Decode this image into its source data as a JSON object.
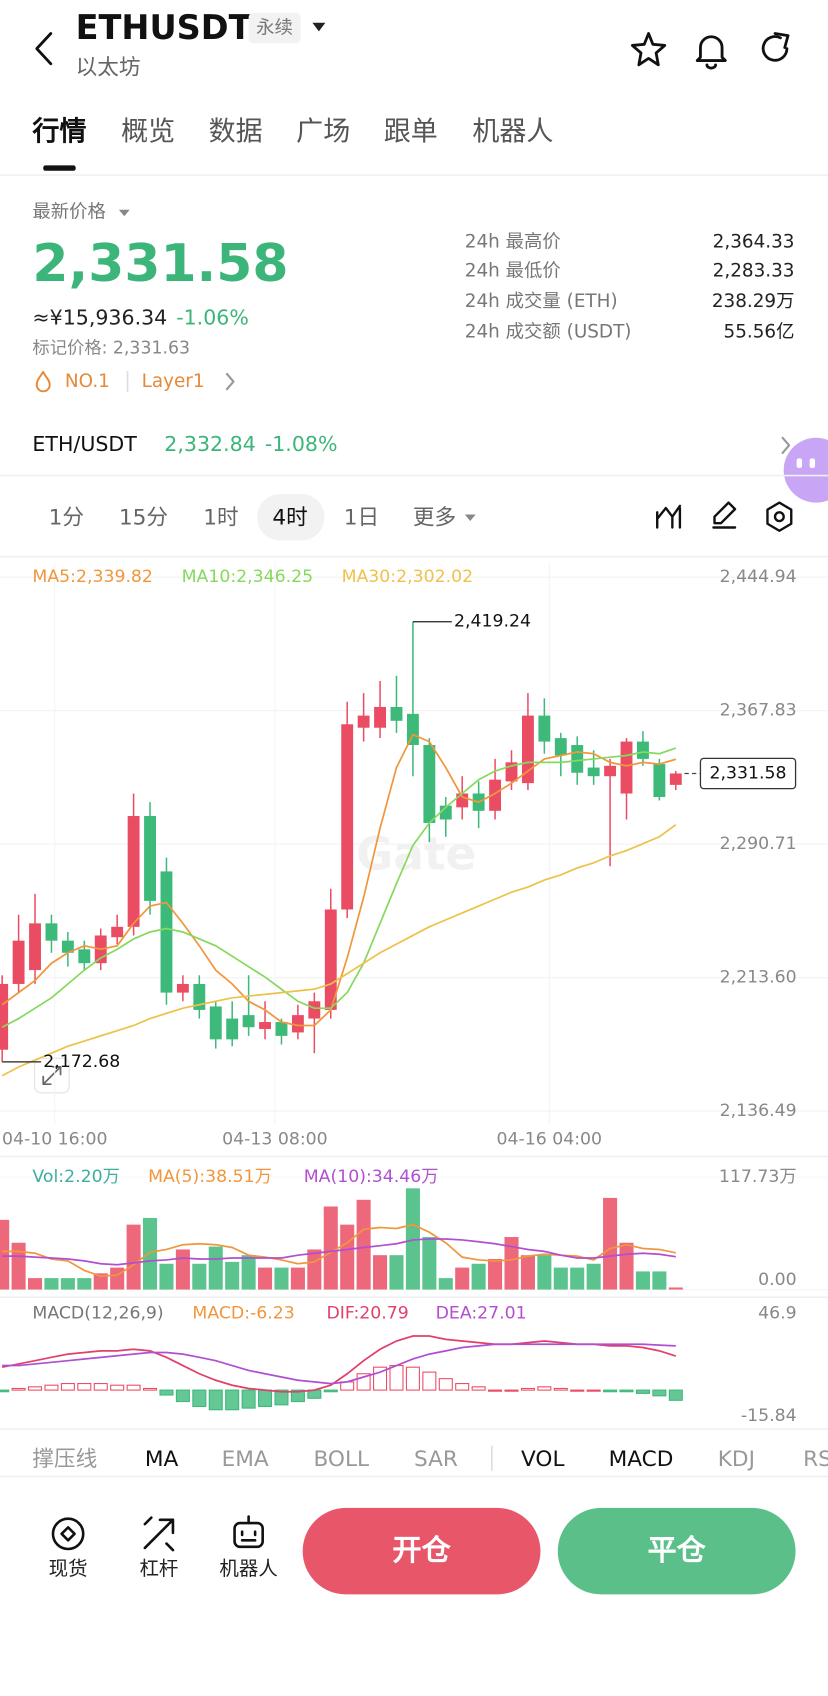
{
  "header": {
    "title": "ETHUSDT",
    "tag": "永续",
    "subtitle": "以太坊"
  },
  "tabs": [
    "行情",
    "概览",
    "数据",
    "广场",
    "跟单",
    "机器人"
  ],
  "price": {
    "label": "最新价格",
    "last": "2,331.58",
    "cny": "≈¥15,936.34",
    "change": "-1.06%",
    "mark": "标记价格: 2,331.63",
    "rank": "NO.1",
    "sector": "Layer1"
  },
  "stats": [
    {
      "label": "24h 最高价",
      "value": "2,364.33"
    },
    {
      "label": "24h 最低价",
      "value": "2,283.33"
    },
    {
      "label": "24h 成交量 (ETH)",
      "value": "238.29万"
    },
    {
      "label": "24h 成交额 (USDT)",
      "value": "55.56亿"
    }
  ],
  "spot": {
    "pair": "ETH/USDT",
    "price": "2,332.84",
    "change": "-1.08%"
  },
  "intervals": [
    {
      "label": "1分",
      "selected": false
    },
    {
      "label": "15分",
      "selected": false
    },
    {
      "label": "1时",
      "selected": false
    },
    {
      "label": "4时",
      "selected": true
    },
    {
      "label": "1日",
      "selected": false
    },
    {
      "label": "更多",
      "selected": false
    }
  ],
  "chart_data": [
    {
      "type": "candlestick",
      "up_color": "#ea4d63",
      "down_color": "#3db97a",
      "watermark": "Gate",
      "open": [
        2172,
        2210,
        2218,
        2245,
        2235,
        2230,
        2222,
        2237,
        2243,
        2307,
        2275,
        2205,
        2210,
        2197,
        2190,
        2192,
        2184,
        2188,
        2182,
        2190,
        2195,
        2253,
        2358,
        2358,
        2370,
        2366,
        2348,
        2313,
        2312,
        2320,
        2310,
        2327,
        2326,
        2365,
        2352,
        2348,
        2335,
        2330,
        2320,
        2350,
        2337,
        2325
      ],
      "high": [
        2215,
        2250,
        2262,
        2250,
        2240,
        2235,
        2242,
        2250,
        2320,
        2315,
        2283,
        2215,
        2215,
        2200,
        2200,
        2215,
        2200,
        2190,
        2198,
        2205,
        2265,
        2373,
        2378,
        2385,
        2388,
        2419.24,
        2352,
        2318,
        2330,
        2327,
        2340,
        2345,
        2378,
        2375,
        2355,
        2353,
        2345,
        2340,
        2352,
        2356,
        2340,
        2333
      ],
      "low": [
        2165,
        2205,
        2210,
        2228,
        2220,
        2218,
        2218,
        2233,
        2238,
        2250,
        2198,
        2200,
        2190,
        2172.68,
        2174,
        2180,
        2178,
        2175,
        2178,
        2170,
        2190,
        2248,
        2350,
        2352,
        2355,
        2330,
        2292,
        2295,
        2305,
        2300,
        2305,
        2322,
        2322,
        2343,
        2330,
        2325,
        2325,
        2278,
        2305,
        2336,
        2316,
        2322
      ],
      "close": [
        2210,
        2235,
        2245,
        2235,
        2228,
        2222,
        2238,
        2243,
        2307,
        2258,
        2205,
        2210,
        2195,
        2178,
        2178,
        2185,
        2188,
        2180,
        2192,
        2200,
        2253,
        2360,
        2365,
        2370,
        2362,
        2348,
        2303,
        2305,
        2320,
        2310,
        2328,
        2338,
        2365,
        2350,
        2342,
        2332,
        2330,
        2336,
        2350,
        2340,
        2318,
        2331.58
      ],
      "series": [
        {
          "name": "MA5:2,339.82",
          "color": "#f0973d",
          "values": [
            2198,
            2205,
            2212,
            2222,
            2228,
            2232,
            2230,
            2232,
            2245,
            2255,
            2257,
            2245,
            2232,
            2218,
            2210,
            2200,
            2195,
            2188,
            2186,
            2186,
            2195,
            2225,
            2260,
            2300,
            2335,
            2354,
            2350,
            2335,
            2318,
            2315,
            2320,
            2326,
            2333,
            2340,
            2342,
            2344,
            2343,
            2338,
            2336,
            2338,
            2337,
            2339.82
          ]
        },
        {
          "name": "MA10:2,346.25",
          "color": "#86d95d",
          "values": [
            2185,
            2190,
            2196,
            2202,
            2210,
            2218,
            2225,
            2230,
            2236,
            2240,
            2242,
            2240,
            2236,
            2232,
            2226,
            2220,
            2214,
            2207,
            2200,
            2196,
            2196,
            2205,
            2222,
            2245,
            2268,
            2290,
            2303,
            2312,
            2320,
            2328,
            2333,
            2336,
            2338,
            2338,
            2338,
            2339,
            2340,
            2341,
            2342,
            2344,
            2343,
            2346.25
          ]
        },
        {
          "name": "MA30:2,302.02",
          "color": "#eec24a",
          "values": [
            2157,
            2162,
            2166,
            2170,
            2174,
            2177,
            2180,
            2183,
            2186,
            2190,
            2193,
            2196,
            2198,
            2200,
            2202,
            2203,
            2204,
            2205,
            2206,
            2207,
            2210,
            2216,
            2222,
            2228,
            2233,
            2238,
            2243,
            2247,
            2251,
            2255,
            2259,
            2263,
            2266,
            2270,
            2273,
            2277,
            2280,
            2284,
            2287,
            2291,
            2295,
            2302.02
          ]
        }
      ],
      "high_label": "2,419.24",
      "low_label": "2,172.68",
      "last_label": "2,331.58",
      "ylim": [
        2136.49,
        2444.94
      ],
      "yticks": [
        {
          "value": 2444.94,
          "label": "2,444.94"
        },
        {
          "value": 2367.83,
          "label": "2,367.83"
        },
        {
          "value": 2290.71,
          "label": "2,290.71"
        },
        {
          "value": 2213.6,
          "label": "2,213.60"
        },
        {
          "value": 2136.49,
          "label": "2,136.49"
        }
      ],
      "xticks": [
        {
          "value": 3.2,
          "label": "04-10 16:00"
        },
        {
          "value": 16.6,
          "label": "04-13 08:00"
        },
        {
          "value": 33.3,
          "label": "04-16 04:00"
        }
      ],
      "grid": true
    },
    {
      "type": "bar",
      "title": "Vol:2.20万",
      "title_color": "#3aaea0",
      "values": [
        73,
        49,
        12,
        12,
        12,
        12,
        17,
        23,
        68,
        75,
        27,
        42,
        27,
        45,
        29,
        36,
        23,
        23,
        23,
        42,
        87,
        68,
        94,
        36,
        36,
        106,
        55,
        12,
        23,
        27,
        32,
        55,
        36,
        36,
        23,
        23,
        27,
        96,
        49,
        19,
        19,
        2.2
      ],
      "series": [
        {
          "name": "MA(5):38.51万",
          "color": "#f0973d",
          "values": [
            40,
            40,
            38,
            32,
            30,
            20,
            14,
            15,
            26,
            39,
            42,
            47,
            48,
            47,
            44,
            36,
            34,
            31,
            27,
            29,
            39,
            49,
            63,
            65,
            64,
            68,
            60,
            49,
            34,
            31,
            30,
            31,
            35,
            37,
            36,
            35,
            31,
            43,
            47,
            43,
            42,
            38.51
          ]
        },
        {
          "name": "MA(10):34.46万",
          "color": "#b04fd0",
          "values": [
            35,
            35,
            34,
            33,
            32,
            30,
            27,
            26,
            28,
            30,
            31,
            33,
            32,
            32,
            33,
            33,
            33,
            33,
            36,
            38,
            40,
            42,
            44,
            46,
            48,
            52,
            53,
            53,
            52,
            50,
            48,
            45,
            42,
            40,
            36,
            33,
            33,
            35,
            37,
            38,
            37,
            34.46
          ]
        }
      ],
      "ylim": [
        0,
        117.73
      ],
      "yticks": [
        {
          "value": 117.73,
          "label": "117.73万"
        },
        {
          "value": 0,
          "label": "0.00"
        }
      ]
    },
    {
      "type": "macd",
      "title": "MACD(12,26,9)",
      "hist_name": "MACD:-6.23",
      "hist_color": "#f0973d",
      "up_color": "#ea4d63",
      "down_color": "#3db97a",
      "values": [
        -1,
        1,
        2,
        3,
        4,
        4,
        4,
        3,
        3,
        1,
        -3,
        -7,
        -10,
        -12,
        -12,
        -11,
        -10,
        -9,
        -7,
        -5,
        -1,
        5,
        10,
        14,
        15,
        14,
        11,
        7,
        4,
        2,
        0,
        0,
        1,
        2,
        1,
        0,
        0,
        -1,
        -1,
        -2,
        -3.5,
        -6.23
      ],
      "series": [
        {
          "name": "DIF:20.79",
          "color": "#e0406a",
          "values": [
            14,
            16,
            18,
            20,
            22,
            23,
            24,
            24,
            25,
            24,
            20,
            15,
            10,
            6,
            3,
            1,
            0,
            -1,
            -1,
            0,
            3,
            10,
            18,
            25,
            30,
            33,
            33,
            31,
            30,
            29,
            28,
            28,
            29,
            30,
            29,
            28,
            28,
            27,
            27,
            26,
            24,
            20.79
          ]
        },
        {
          "name": "DEA:27.01",
          "color": "#b04fd0",
          "values": [
            15,
            15,
            16,
            17,
            18,
            19,
            20,
            21,
            22,
            23,
            23,
            22,
            20,
            18,
            15,
            12,
            10,
            8,
            6,
            5,
            4,
            5,
            8,
            11,
            15,
            19,
            22,
            24,
            26,
            27,
            28,
            28,
            28,
            28,
            28,
            28,
            28,
            28,
            28,
            28,
            27.5,
            27.01
          ]
        }
      ],
      "ylim": [
        -15.84,
        46.9
      ],
      "yticks": [
        46.9,
        -15.84
      ]
    }
  ],
  "indicators": [
    {
      "label": "撑压线",
      "active": false
    },
    {
      "label": "MA",
      "active": true
    },
    {
      "label": "EMA",
      "active": false
    },
    {
      "label": "BOLL",
      "active": false
    },
    {
      "label": "SAR",
      "active": false
    },
    {
      "label": "VOL",
      "active": true
    },
    {
      "label": "MACD",
      "active": true
    },
    {
      "label": "KDJ",
      "active": false
    },
    {
      "label": "RSI",
      "active": false
    }
  ],
  "bottom": {
    "nav": [
      "现货",
      "杠杆",
      "机器人"
    ],
    "open": "开仓",
    "close": "平仓"
  }
}
